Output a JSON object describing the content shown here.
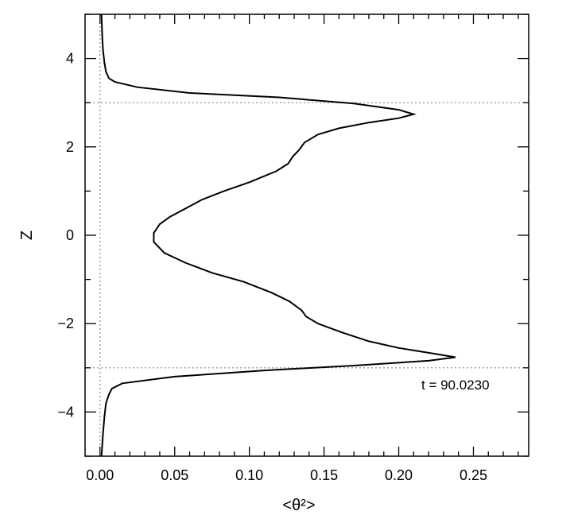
{
  "chart_data": {
    "type": "line",
    "title": "",
    "xlabel": "<θ²>",
    "ylabel": "Z",
    "xlim": [
      -0.01,
      0.287
    ],
    "ylim": [
      -5,
      5
    ],
    "grid": false,
    "x_ticks": [
      0.0,
      0.05,
      0.1,
      0.15,
      0.2,
      0.25
    ],
    "x_tick_labels": [
      "0.00",
      "0.05",
      "0.10",
      "0.15",
      "0.20",
      "0.25"
    ],
    "y_ticks": [
      -4,
      -2,
      0,
      2,
      4
    ],
    "y_tick_labels": [
      "−4",
      "−2",
      "0",
      "2",
      "4"
    ],
    "annotation": "t = 90.0230",
    "reference_lines": {
      "horizontal_dotted": [
        3,
        -3
      ],
      "vertical_dotted": [
        0
      ]
    },
    "series": [
      {
        "points": [
          [
            0.001,
            5.0
          ],
          [
            0.0015,
            4.5
          ],
          [
            0.002,
            4.2
          ],
          [
            0.003,
            3.9
          ],
          [
            0.004,
            3.7
          ],
          [
            0.006,
            3.55
          ],
          [
            0.01,
            3.47
          ],
          [
            0.025,
            3.35
          ],
          [
            0.06,
            3.22
          ],
          [
            0.12,
            3.12
          ],
          [
            0.17,
            2.98
          ],
          [
            0.2,
            2.84
          ],
          [
            0.21,
            2.74
          ],
          [
            0.2,
            2.65
          ],
          [
            0.18,
            2.55
          ],
          [
            0.16,
            2.42
          ],
          [
            0.146,
            2.28
          ],
          [
            0.137,
            2.1
          ],
          [
            0.133,
            1.92
          ],
          [
            0.129,
            1.78
          ],
          [
            0.126,
            1.62
          ],
          [
            0.118,
            1.45
          ],
          [
            0.1,
            1.2
          ],
          [
            0.083,
            1.0
          ],
          [
            0.068,
            0.8
          ],
          [
            0.057,
            0.6
          ],
          [
            0.047,
            0.42
          ],
          [
            0.04,
            0.25
          ],
          [
            0.036,
            0.05
          ],
          [
            0.036,
            -0.15
          ],
          [
            0.043,
            -0.4
          ],
          [
            0.057,
            -0.62
          ],
          [
            0.075,
            -0.85
          ],
          [
            0.096,
            -1.05
          ],
          [
            0.115,
            -1.3
          ],
          [
            0.127,
            -1.5
          ],
          [
            0.135,
            -1.7
          ],
          [
            0.138,
            -1.84
          ],
          [
            0.146,
            -2.0
          ],
          [
            0.162,
            -2.2
          ],
          [
            0.18,
            -2.4
          ],
          [
            0.2,
            -2.55
          ],
          [
            0.22,
            -2.66
          ],
          [
            0.238,
            -2.76
          ],
          [
            0.22,
            -2.84
          ],
          [
            0.17,
            -2.95
          ],
          [
            0.11,
            -3.06
          ],
          [
            0.05,
            -3.2
          ],
          [
            0.015,
            -3.35
          ],
          [
            0.008,
            -3.47
          ],
          [
            0.006,
            -3.6
          ],
          [
            0.004,
            -3.8
          ],
          [
            0.003,
            -4.1
          ],
          [
            0.002,
            -4.5
          ],
          [
            0.001,
            -5.0
          ]
        ]
      }
    ]
  }
}
